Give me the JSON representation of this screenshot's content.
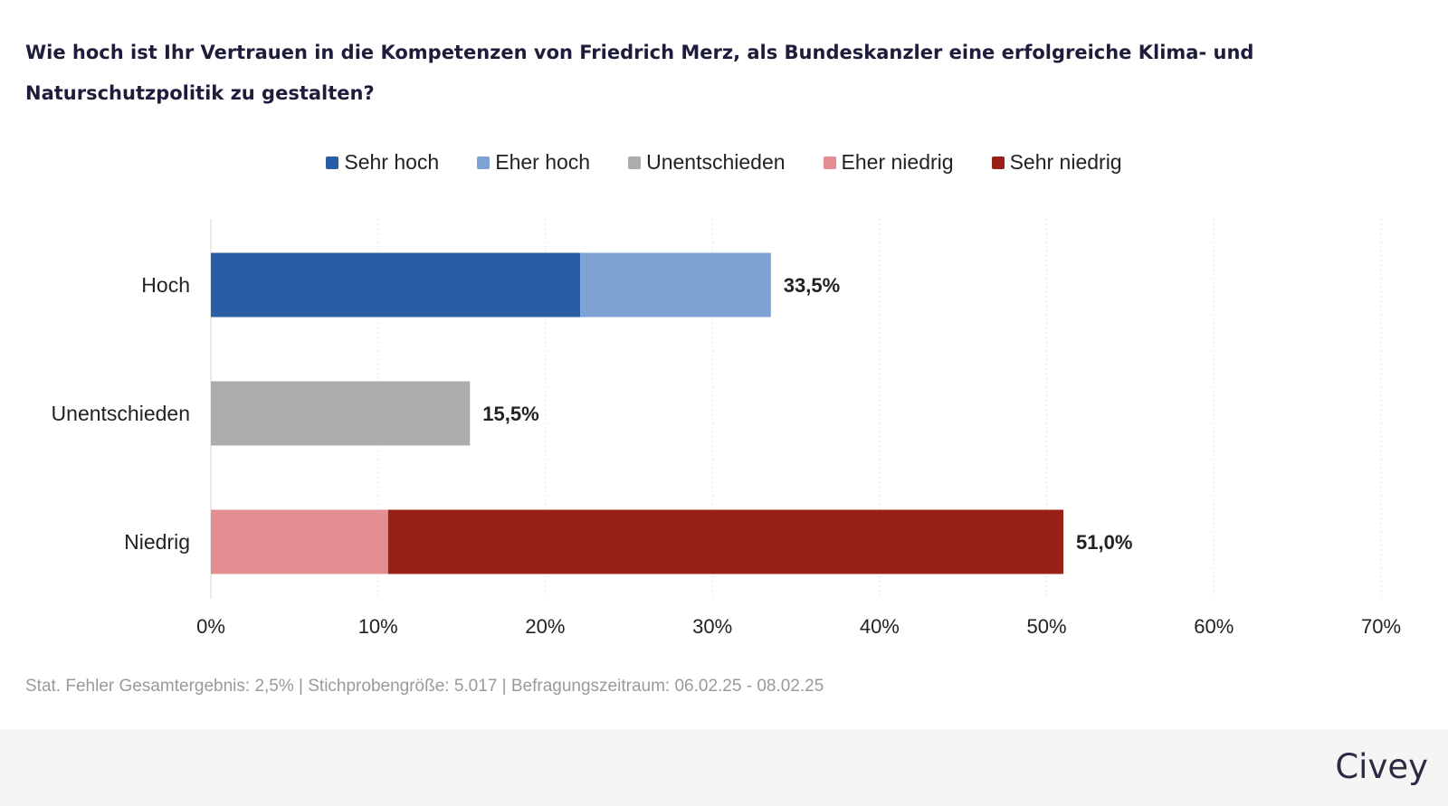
{
  "chart_data": {
    "type": "bar",
    "orientation": "horizontal",
    "stacked": true,
    "title": "Wie hoch ist Ihr Vertrauen in die Kompetenzen von Friedrich Merz, als Bundeskanzler eine erfolgreiche Klima- und Naturschutzpolitik zu gestalten?",
    "categories": [
      "Hoch",
      "Unentschieden",
      "Niedrig"
    ],
    "series": [
      {
        "name": "Sehr hoch",
        "color": "#2a5ea4",
        "values": [
          22.1,
          0,
          0
        ]
      },
      {
        "name": "Eher hoch",
        "color": "#7ea2d3",
        "values": [
          11.4,
          0,
          0
        ]
      },
      {
        "name": "Unentschieden",
        "color": "#acacad",
        "values": [
          0,
          15.5,
          0
        ]
      },
      {
        "name": "Eher niedrig",
        "color": "#e38e92",
        "values": [
          0,
          0,
          10.6
        ]
      },
      {
        "name": "Sehr niedrig",
        "color": "#992016",
        "values": [
          0,
          0,
          40.4
        ]
      }
    ],
    "totals": [
      33.5,
      15.5,
      51.0
    ],
    "total_labels": [
      "33,5%",
      "15,5%",
      "51,0%"
    ],
    "xlim": [
      0,
      70
    ],
    "xticks": [
      0,
      10,
      20,
      30,
      40,
      50,
      60,
      70
    ],
    "xtick_labels": [
      "0%",
      "10%",
      "20%",
      "30%",
      "40%",
      "50%",
      "60%",
      "70%"
    ],
    "grid": true,
    "legend_position": "top-center"
  },
  "footnote": "Stat. Fehler Gesamtergebnis: 2,5% | Stichprobengröße: 5.017 | Befragungszeitraum: 06.02.25 - 08.02.25",
  "brand": "Civey"
}
